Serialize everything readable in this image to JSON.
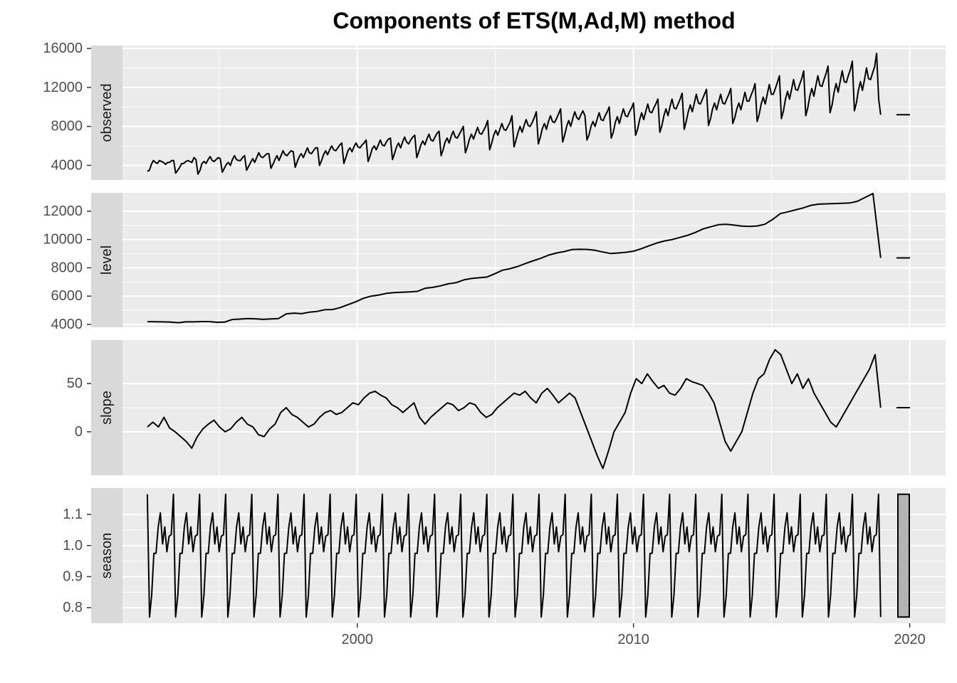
{
  "chart_data": {
    "type": "line",
    "title": "Components of ETS(M,Ad,M) method",
    "x_ticks": [
      2000,
      2010,
      2020
    ],
    "xlim": [
      1991.5,
      2021.3
    ],
    "grid": true,
    "panels": [
      {
        "name": "observed",
        "yticks": [
          4000,
          8000,
          12000,
          16000
        ],
        "ylim": [
          2500,
          16300
        ],
        "values": [
          3390,
          3500,
          4100,
          4500,
          4300,
          4200,
          4500,
          4400,
          4300,
          4100,
          4300,
          4300,
          4500,
          4500,
          3200,
          3500,
          3800,
          4200,
          4200,
          4400,
          4500,
          4400,
          4300,
          4800,
          4600,
          3100,
          3500,
          4200,
          4400,
          4200,
          4600,
          4900,
          4500,
          4400,
          4600,
          4800,
          4700,
          3300,
          3700,
          4100,
          4300,
          4000,
          4600,
          5000,
          4600,
          4500,
          4500,
          4800,
          5000,
          3500,
          3900,
          4300,
          4700,
          4300,
          4800,
          5300,
          4900,
          4800,
          5000,
          5200,
          5200,
          3700,
          4100,
          4600,
          5000,
          4500,
          5000,
          5500,
          5100,
          5000,
          5300,
          5500,
          5400,
          3800,
          4400,
          4900,
          5200,
          4800,
          5300,
          5800,
          5300,
          5200,
          5500,
          5800,
          5800,
          4000,
          4500,
          5100,
          5500,
          5100,
          5600,
          6000,
          5600,
          5500,
          5800,
          6100,
          6300,
          4200,
          4800,
          5500,
          5800,
          5400,
          5900,
          6300,
          5900,
          5800,
          6100,
          6300,
          6600,
          4400,
          5000,
          5700,
          6000,
          5600,
          6100,
          6600,
          6100,
          6000,
          6400,
          6700,
          6800,
          4600,
          5200,
          5900,
          6300,
          5800,
          6400,
          6900,
          6400,
          6200,
          6600,
          6900,
          7100,
          4800,
          5400,
          6100,
          6500,
          6100,
          6700,
          7200,
          6600,
          6500,
          6900,
          7300,
          7500,
          5000,
          5600,
          6400,
          6800,
          6300,
          7000,
          7500,
          6900,
          6800,
          7200,
          7600,
          8000,
          5300,
          5900,
          6700,
          7200,
          6700,
          7300,
          7900,
          7300,
          7200,
          7600,
          8000,
          8600,
          5600,
          6300,
          7100,
          7600,
          7100,
          7700,
          8300,
          7700,
          7600,
          8000,
          8400,
          9100,
          5900,
          6600,
          7400,
          8000,
          7400,
          8100,
          8700,
          8100,
          8000,
          8400,
          8900,
          9500,
          6200,
          6900,
          7800,
          8300,
          7700,
          8500,
          9100,
          8500,
          8400,
          8800,
          9300,
          9800,
          6400,
          7100,
          8000,
          8600,
          8000,
          8800,
          9500,
          8900,
          8700,
          9200,
          9600,
          9100,
          6600,
          7100,
          8000,
          8500,
          8000,
          8700,
          9400,
          8700,
          8600,
          9100,
          9500,
          10000,
          6800,
          7400,
          8400,
          9000,
          8300,
          9100,
          9800,
          9100,
          9000,
          9500,
          9900,
          10400,
          7100,
          7700,
          8700,
          9400,
          8700,
          9500,
          10300,
          9500,
          9400,
          9900,
          10300,
          10800,
          7400,
          8100,
          9100,
          9800,
          9100,
          10000,
          10800,
          9900,
          9800,
          10300,
          10800,
          11400,
          7700,
          8500,
          9500,
          10200,
          9500,
          10400,
          11300,
          10400,
          10300,
          10800,
          11300,
          11800,
          8100,
          8800,
          9800,
          10400,
          9700,
          10500,
          11300,
          10400,
          10300,
          10800,
          11300,
          11900,
          8300,
          8900,
          9800,
          10400,
          9700,
          10600,
          11500,
          10600,
          10600,
          11200,
          11700,
          12400,
          8500,
          9200,
          10300,
          11000,
          10300,
          11300,
          12300,
          11300,
          11300,
          11900,
          12500,
          13200,
          8800,
          9600,
          10800,
          11600,
          10800,
          11800,
          12800,
          11800,
          11700,
          12300,
          12900,
          13700,
          9100,
          9900,
          11100,
          11900,
          11100,
          12200,
          13200,
          12200,
          12100,
          12800,
          13400,
          14200,
          9400,
          10200,
          11500,
          12400,
          11500,
          12600,
          13700,
          12600,
          12500,
          13200,
          13800,
          14700,
          9600,
          10400,
          11700,
          12600,
          11700,
          12800,
          14000,
          12900,
          12800,
          13500,
          14100,
          15500,
          10800,
          9200
        ]
      },
      {
        "name": "level",
        "yticks": [
          4000,
          6000,
          8000,
          10000,
          12000
        ],
        "ylim": [
          3800,
          13300
        ],
        "values": [
          4200,
          4190,
          4180,
          4160,
          4120,
          4180,
          4180,
          4200,
          4200,
          4150,
          4160,
          4350,
          4380,
          4420,
          4400,
          4360,
          4390,
          4420,
          4750,
          4800,
          4760,
          4870,
          4920,
          5040,
          5050,
          5190,
          5400,
          5600,
          5850,
          6000,
          6080,
          6200,
          6250,
          6280,
          6300,
          6340,
          6560,
          6620,
          6730,
          6870,
          6950,
          7150,
          7250,
          7300,
          7350,
          7580,
          7830,
          7940,
          8100,
          8310,
          8500,
          8680,
          8900,
          9050,
          9150,
          9290,
          9310,
          9300,
          9240,
          9120,
          9010,
          9050,
          9100,
          9180,
          9350,
          9560,
          9750,
          9900,
          10000,
          10150,
          10300,
          10500,
          10750,
          10900,
          11050,
          11080,
          11020,
          10950,
          10920,
          10960,
          11080,
          11420,
          11830,
          11960,
          12100,
          12240,
          12420,
          12500,
          12520,
          12540,
          12560,
          12580,
          12700,
          12980,
          13250,
          8700
        ]
      },
      {
        "name": "slope",
        "yticks": [
          0,
          50
        ],
        "ylim": [
          -45,
          95
        ],
        "values": [
          5,
          10,
          5,
          15,
          4,
          0,
          -5,
          -10,
          -17,
          -5,
          3,
          8,
          12,
          5,
          0,
          3,
          10,
          15,
          8,
          5,
          -3,
          -5,
          3,
          8,
          20,
          25,
          18,
          15,
          10,
          5,
          8,
          15,
          20,
          22,
          18,
          20,
          25,
          30,
          28,
          35,
          40,
          42,
          38,
          35,
          28,
          25,
          20,
          25,
          30,
          15,
          8,
          15,
          20,
          25,
          30,
          28,
          22,
          25,
          30,
          28,
          20,
          15,
          18,
          25,
          30,
          35,
          40,
          38,
          42,
          35,
          30,
          40,
          45,
          38,
          30,
          35,
          40,
          35,
          20,
          5,
          -10,
          -25,
          -38,
          -20,
          0,
          10,
          20,
          40,
          55,
          50,
          60,
          52,
          45,
          48,
          40,
          38,
          45,
          55,
          52,
          50,
          48,
          40,
          30,
          10,
          -10,
          -20,
          -10,
          0,
          20,
          40,
          55,
          60,
          75,
          85,
          80,
          65,
          50,
          60,
          45,
          55,
          40,
          30,
          20,
          10,
          5,
          15,
          25,
          35,
          45,
          55,
          65,
          80,
          25
        ]
      },
      {
        "name": "season",
        "yticks": [
          0.8,
          0.9,
          1.0,
          1.1
        ],
        "ylim": [
          0.75,
          1.185
        ],
        "values": [
          1.165,
          0.77,
          0.84,
          0.975,
          0.975,
          1.06,
          1.105,
          1.005,
          1.06,
          0.98,
          1.03,
          1.035
        ],
        "cycles": 28
      }
    ],
    "right_markers": [
      {
        "panel": "observed",
        "value": 9200
      },
      {
        "panel": "level",
        "value": 8700
      },
      {
        "panel": "slope",
        "value": 25
      },
      {
        "panel": "season",
        "range": [
          0.77,
          1.165
        ]
      }
    ]
  }
}
